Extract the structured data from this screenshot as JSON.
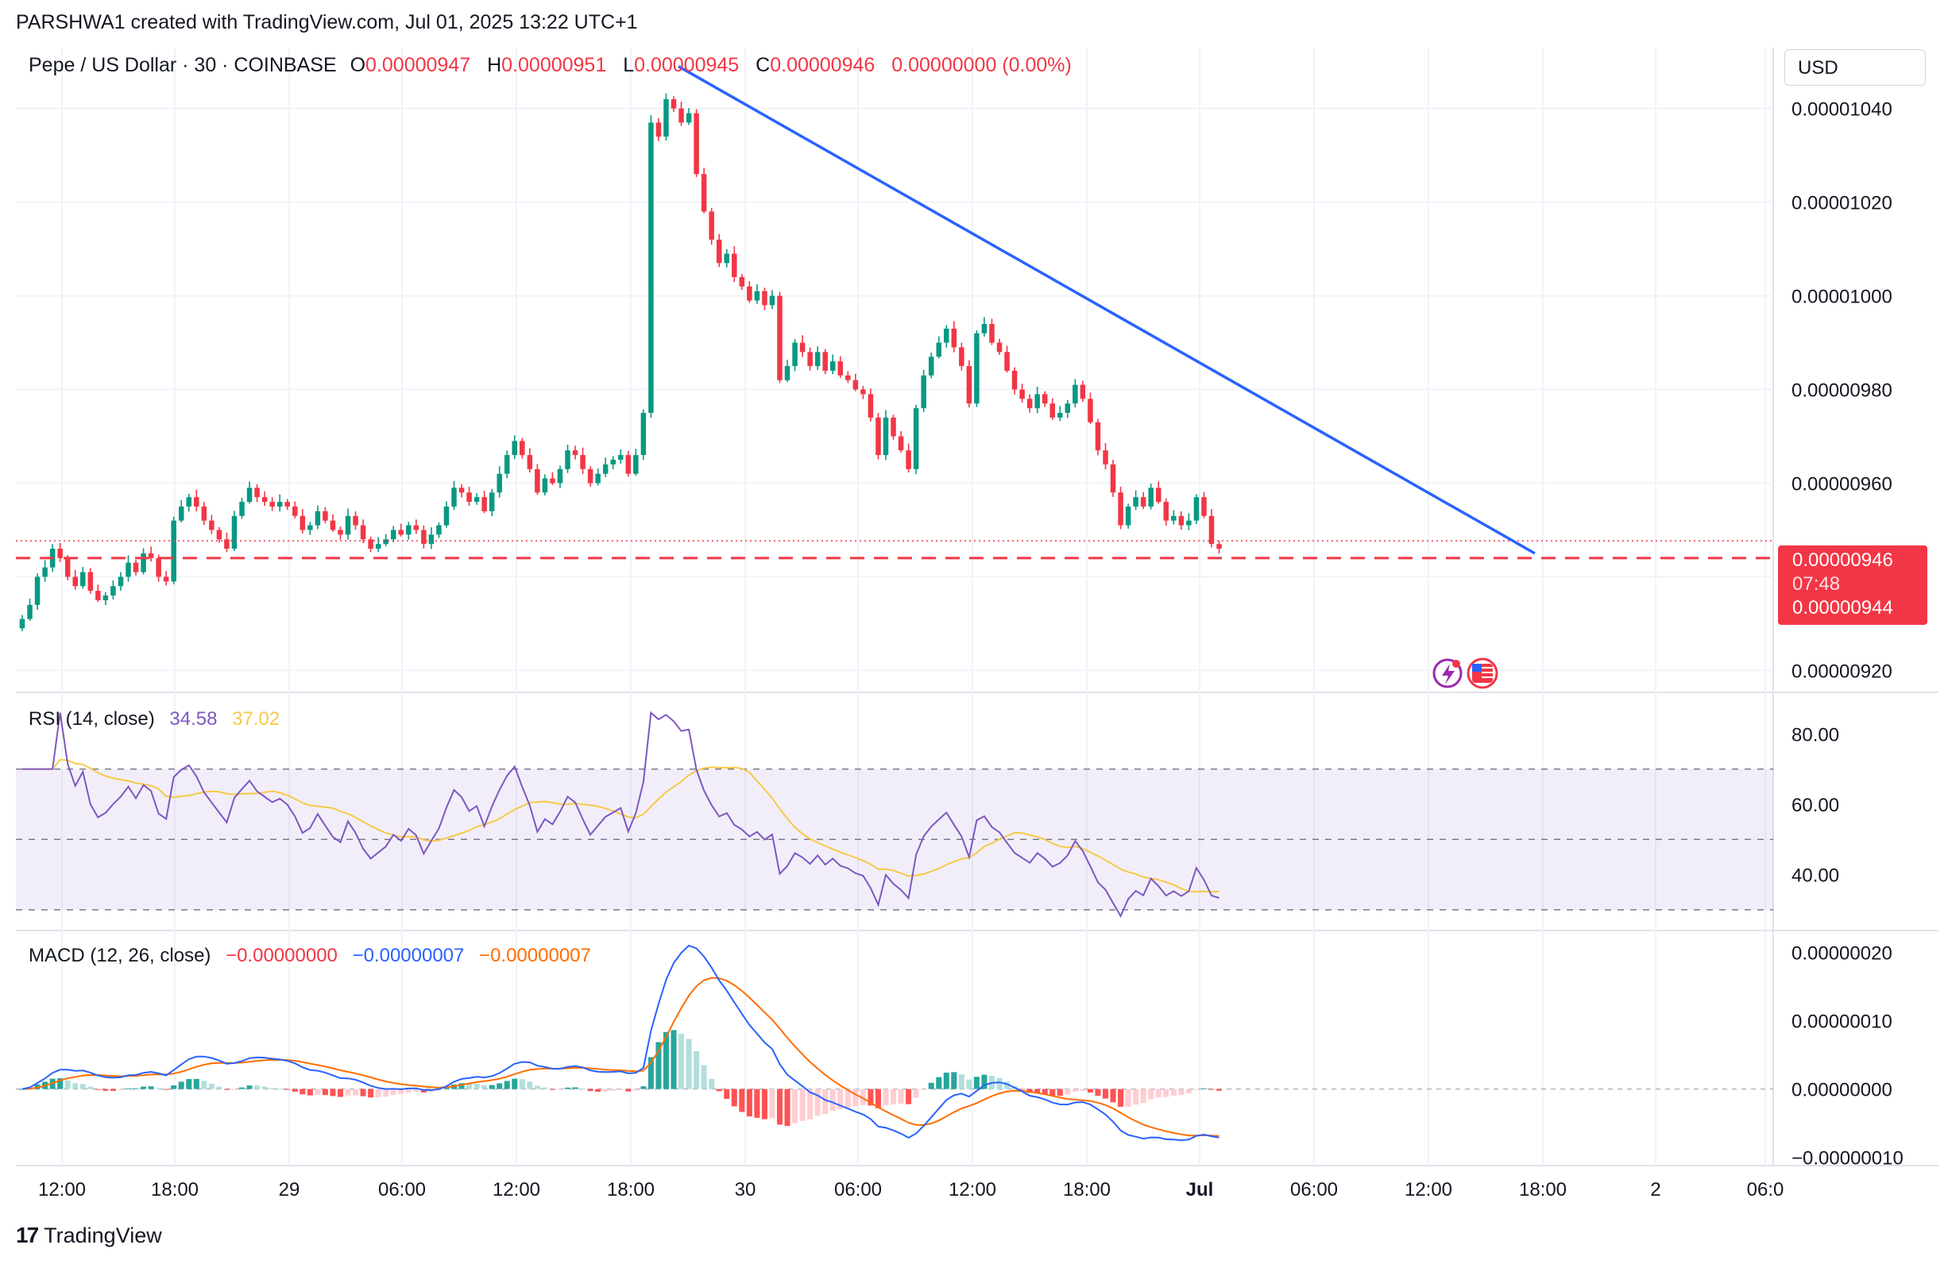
{
  "header": {
    "attribution": "PARSHWA1 created with TradingView.com, Jul 01, 2025 13:22 UTC+1"
  },
  "legend": {
    "symbol": "Pepe / US Dollar · 30 · COINBASE",
    "open_label": "O",
    "open": "0.00000947",
    "high_label": "H",
    "high": "0.00000951",
    "low_label": "L",
    "low": "0.00000945",
    "close_label": "C",
    "close": "0.00000946",
    "change": "0.00000000 (0.00%)"
  },
  "currency_button": "USD",
  "price_tag": {
    "price": "0.00000946",
    "countdown": "07:48",
    "line_price": "0.00000944"
  },
  "rsi": {
    "label": "RSI (14, close)",
    "value": "34.58",
    "ma_value": "37.02"
  },
  "macd": {
    "label": "MACD (12, 26, close)",
    "hist": "−0.00000000",
    "macd": "−0.00000007",
    "signal": "−0.00000007"
  },
  "brand": {
    "name": "TradingView"
  },
  "colors": {
    "up": "#089981",
    "down": "#f23645",
    "trendline": "#2962ff",
    "rsi": "#7e57c2",
    "rsi_ma": "#f7c948",
    "macd": "#2962ff",
    "signal": "#ff6d00"
  },
  "icons": [
    "lightning-icon",
    "us-flag-icon"
  ],
  "chart_data": [
    {
      "type": "candlestick",
      "title": "Pepe / US Dollar · 30 · COINBASE",
      "x_ticks": [
        "12:00",
        "18:00",
        "29",
        "06:00",
        "12:00",
        "18:00",
        "30",
        "06:00",
        "12:00",
        "18:00",
        "Jul",
        "06:00",
        "12:00",
        "18:00",
        "2",
        "06:0"
      ],
      "y_ticks": [
        "0.00001040",
        "0.00001020",
        "0.00001000",
        "0.00000980",
        "0.00000960",
        "0.00000920"
      ],
      "ylim": [
        9.16e-06,
        1.053e-05
      ],
      "close_series": [
        9.31e-06,
        9.34e-06,
        9.4e-06,
        9.42e-06,
        9.46e-06,
        9.44e-06,
        9.4e-06,
        9.38e-06,
        9.41e-06,
        9.37e-06,
        9.35e-06,
        9.36e-06,
        9.38e-06,
        9.4e-06,
        9.43e-06,
        9.41e-06,
        9.45e-06,
        9.44e-06,
        9.4e-06,
        9.39e-06,
        9.52e-06,
        9.55e-06,
        9.57e-06,
        9.55e-06,
        9.52e-06,
        9.5e-06,
        9.48e-06,
        9.46e-06,
        9.53e-06,
        9.56e-06,
        9.59e-06,
        9.57e-06,
        9.56e-06,
        9.55e-06,
        9.56e-06,
        9.55e-06,
        9.53e-06,
        9.5e-06,
        9.51e-06,
        9.54e-06,
        9.52e-06,
        9.5e-06,
        9.49e-06,
        9.53e-06,
        9.51e-06,
        9.48e-06,
        9.46e-06,
        9.47e-06,
        9.48e-06,
        9.5e-06,
        9.49e-06,
        9.51e-06,
        9.5e-06,
        9.47e-06,
        9.49e-06,
        9.51e-06,
        9.55e-06,
        9.59e-06,
        9.58e-06,
        9.56e-06,
        9.57e-06,
        9.54e-06,
        9.58e-06,
        9.62e-06,
        9.66e-06,
        9.69e-06,
        9.66e-06,
        9.63e-06,
        9.58e-06,
        9.61e-06,
        9.6e-06,
        9.63e-06,
        9.67e-06,
        9.66e-06,
        9.63e-06,
        9.6e-06,
        9.62e-06,
        9.64e-06,
        9.65e-06,
        9.66e-06,
        9.62e-06,
        9.66e-06,
        9.75e-06,
        1.037e-05,
        1.034e-05,
        1.042e-05,
        1.04e-05,
        1.037e-05,
        1.039e-05,
        1.026e-05,
        1.018e-05,
        1.012e-05,
        1.007e-05,
        1.009e-05,
        1.004e-05,
        1.002e-05,
        9.99e-06,
        1.001e-05,
        9.98e-06,
        1e-05,
        9.82e-06,
        9.85e-06,
        9.9e-06,
        9.88e-06,
        9.85e-06,
        9.88e-06,
        9.84e-06,
        9.86e-06,
        9.83e-06,
        9.82e-06,
        9.8e-06,
        9.79e-06,
        9.74e-06,
        9.66e-06,
        9.74e-06,
        9.7e-06,
        9.67e-06,
        9.63e-06,
        9.76e-06,
        9.83e-06,
        9.87e-06,
        9.9e-06,
        9.93e-06,
        9.89e-06,
        9.85e-06,
        9.77e-06,
        9.92e-06,
        9.94e-06,
        9.9e-06,
        9.88e-06,
        9.84e-06,
        9.8e-06,
        9.78e-06,
        9.76e-06,
        9.79e-06,
        9.77e-06,
        9.74e-06,
        9.75e-06,
        9.77e-06,
        9.81e-06,
        9.78e-06,
        9.73e-06,
        9.67e-06,
        9.64e-06,
        9.58e-06,
        9.51e-06,
        9.55e-06,
        9.57e-06,
        9.55e-06,
        9.59e-06,
        9.56e-06,
        9.52e-06,
        9.53e-06,
        9.51e-06,
        9.52e-06,
        9.57e-06,
        9.53e-06,
        9.47e-06,
        9.46e-06
      ]
    },
    {
      "type": "line",
      "title": "RSI (14, close)",
      "y_ticks": [
        "80.00",
        "60.00",
        "40.00"
      ],
      "ylim": [
        25,
        90
      ],
      "bands": [
        30,
        50,
        70
      ],
      "series": [
        {
          "name": "RSI",
          "last": 34.58
        },
        {
          "name": "RSI MA",
          "last": 37.02
        }
      ]
    },
    {
      "type": "line",
      "title": "MACD (12, 26, close)",
      "y_ticks": [
        "0.00000020",
        "0.00000010",
        "0.00000000",
        "−0.00000010"
      ],
      "ylim": [
        -1.05e-07,
        2.25e-07
      ],
      "series": [
        {
          "name": "MACD",
          "last": -7e-08
        },
        {
          "name": "Signal",
          "last": -7e-08
        },
        {
          "name": "Histogram",
          "last": -0.0
        }
      ]
    }
  ]
}
